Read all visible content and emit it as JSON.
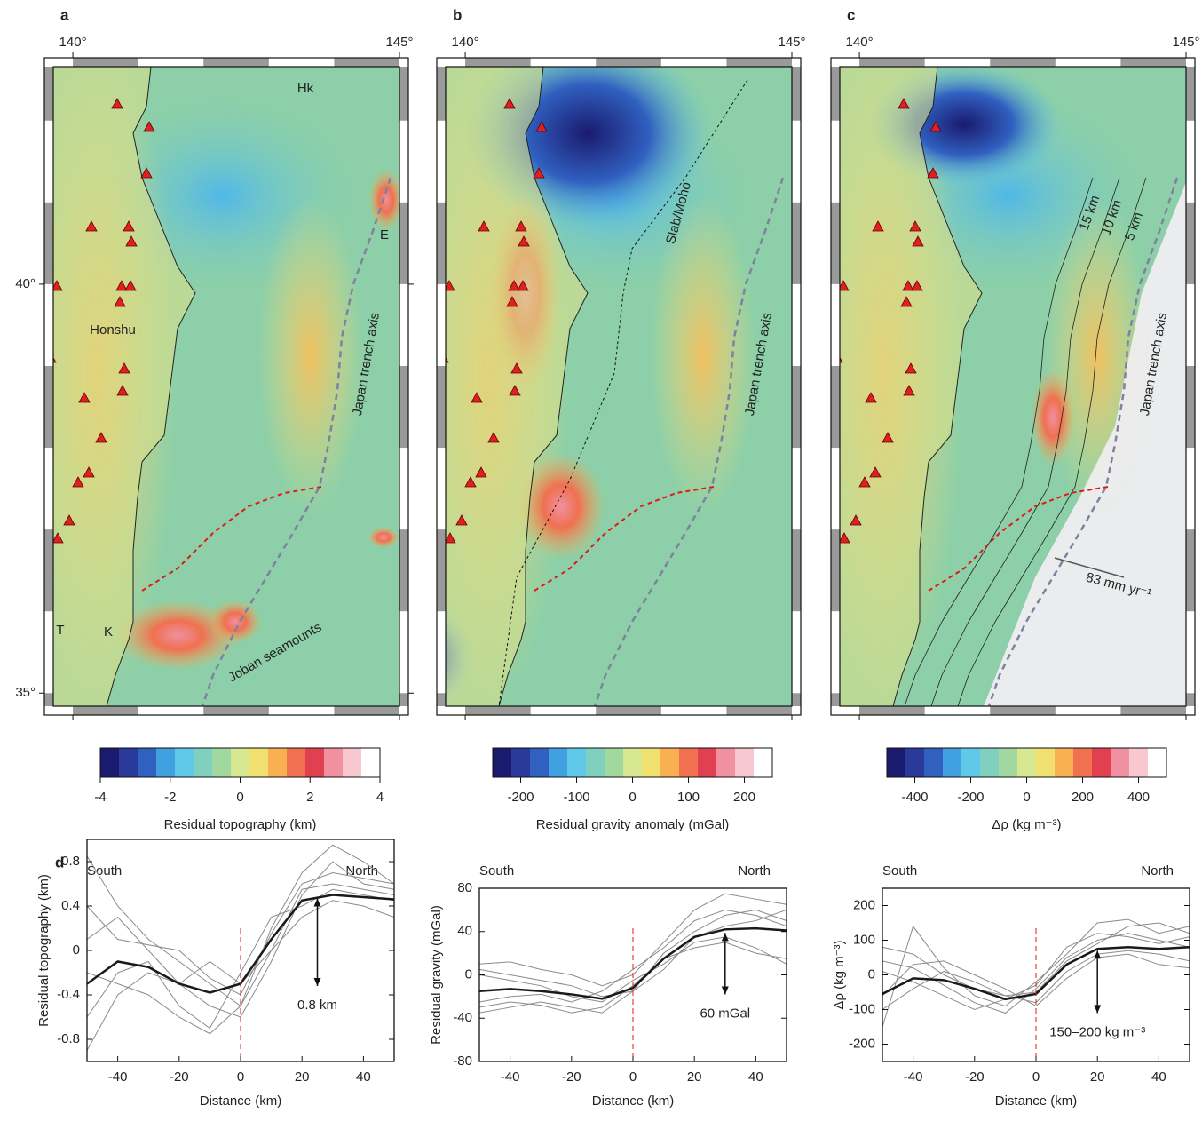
{
  "chart_data": [
    {
      "type": "map",
      "panel": "a",
      "xlim": [
        139.7,
        145
      ],
      "ylim": [
        34.84,
        42.66
      ],
      "xticks": [
        {
          "value": 140,
          "label": "140°"
        },
        {
          "value": 145,
          "label": "145°"
        }
      ],
      "yticks": [
        {
          "value": 40,
          "label": "40°"
        },
        {
          "value": 35,
          "label": "35°"
        }
      ],
      "annotations": [
        "Hk",
        "E",
        "Honshu",
        "Japan trench axis",
        "Joban seamounts",
        "T",
        "K"
      ],
      "colorbar": {
        "label": "Residual topography (km)",
        "lim": [
          -4,
          4
        ],
        "ticks": [
          -4,
          -2,
          0,
          2,
          4
        ]
      }
    },
    {
      "type": "map",
      "panel": "b",
      "xlim": [
        139.7,
        145
      ],
      "ylim": [
        34.84,
        42.66
      ],
      "xticks": [
        {
          "value": 140,
          "label": "140°"
        },
        {
          "value": 145,
          "label": "145°"
        }
      ],
      "annotations": [
        "Slab/Moho",
        "Japan trench axis"
      ],
      "colorbar": {
        "label": "Residual gravity anomaly (mGal)",
        "lim": [
          -250,
          250
        ],
        "ticks": [
          -200,
          -100,
          0,
          100,
          200
        ]
      }
    },
    {
      "type": "map",
      "panel": "c",
      "xlim": [
        139.7,
        145
      ],
      "ylim": [
        34.84,
        42.66
      ],
      "xticks": [
        {
          "value": 140,
          "label": "140°"
        },
        {
          "value": 145,
          "label": "145°"
        }
      ],
      "annotations": [
        "15 km",
        "10 km",
        "5 km",
        "Japan trench axis",
        "83 mm yr⁻¹"
      ],
      "colorbar": {
        "label": "Δρ (kg m⁻³)",
        "lim": [
          -500,
          500
        ],
        "ticks": [
          -400,
          -200,
          0,
          200,
          400
        ]
      }
    },
    {
      "type": "line",
      "panel": "d",
      "xlabel": "Distance (km)",
      "ylabel": "Residual topography (km)",
      "left_label": "South",
      "right_label": "North",
      "annotation": "0.8 km",
      "vline": 0,
      "xlim": [
        -50,
        50
      ],
      "ylim": [
        -1,
        1
      ],
      "xticks": [
        -40,
        -20,
        0,
        20,
        40
      ],
      "yticks": [
        -0.8,
        -0.4,
        0,
        0.4,
        0.8
      ],
      "x": [
        -50,
        -40,
        -30,
        -20,
        -10,
        0,
        10,
        20,
        30,
        40,
        50
      ],
      "series": [
        {
          "color": "#8a8a8a",
          "width": 1,
          "values": [
            0.85,
            0.4,
            0.1,
            -0.1,
            -0.3,
            -0.5,
            0.2,
            0.7,
            0.95,
            0.8,
            0.6
          ]
        },
        {
          "color": "#8a8a8a",
          "width": 1,
          "values": [
            0.1,
            0.3,
            0,
            -0.3,
            -0.5,
            -0.6,
            -0.1,
            0.5,
            0.8,
            0.6,
            0.55
          ]
        },
        {
          "color": "#8a8a8a",
          "width": 1,
          "values": [
            -0.6,
            -0.2,
            -0.1,
            -0.5,
            -0.7,
            -0.2,
            0.3,
            0.4,
            0.55,
            0.5,
            0.45
          ]
        },
        {
          "color": "#8a8a8a",
          "width": 1,
          "values": [
            -0.9,
            -0.4,
            -0.2,
            -0.3,
            -0.1,
            -0.3,
            0,
            0.3,
            0.45,
            0.4,
            0.3
          ]
        },
        {
          "color": "#8a8a8a",
          "width": 1,
          "values": [
            0.4,
            0.1,
            0.05,
            0,
            -0.25,
            -0.4,
            0.15,
            0.6,
            0.7,
            0.65,
            0.6
          ]
        },
        {
          "color": "#8a8a8a",
          "width": 1,
          "values": [
            -0.2,
            -0.3,
            -0.4,
            -0.6,
            -0.75,
            -0.5,
            0,
            0.55,
            0.6,
            0.55,
            0.5
          ]
        },
        {
          "color": "#1a1a1a",
          "width": 2.5,
          "values": [
            -0.3,
            -0.1,
            -0.15,
            -0.3,
            -0.38,
            -0.3,
            0.1,
            0.45,
            0.5,
            0.48,
            0.46
          ]
        }
      ]
    },
    {
      "type": "line",
      "xlabel": "Distance (km)",
      "ylabel": "Residual gravity (mGal)",
      "left_label": "South",
      "right_label": "North",
      "annotation": "60 mGal",
      "vline": 0,
      "xlim": [
        -50,
        50
      ],
      "ylim": [
        -80,
        80
      ],
      "xticks": [
        -40,
        -20,
        0,
        20,
        40
      ],
      "yticks": [
        -80,
        -40,
        0,
        40,
        80
      ],
      "x": [
        -50,
        -40,
        -30,
        -20,
        -10,
        0,
        10,
        20,
        30,
        40,
        50
      ],
      "series": [
        {
          "color": "#8a8a8a",
          "width": 1,
          "values": [
            10,
            12,
            5,
            0,
            -10,
            0,
            30,
            60,
            75,
            70,
            65
          ]
        },
        {
          "color": "#8a8a8a",
          "width": 1,
          "values": [
            -35,
            -30,
            -25,
            -30,
            -35,
            -15,
            20,
            40,
            55,
            60,
            50
          ]
        },
        {
          "color": "#8a8a8a",
          "width": 1,
          "values": [
            0,
            -5,
            -10,
            -20,
            -25,
            -5,
            10,
            30,
            35,
            25,
            10
          ]
        },
        {
          "color": "#8a8a8a",
          "width": 1,
          "values": [
            -25,
            -20,
            -18,
            -25,
            -15,
            5,
            25,
            50,
            60,
            55,
            45
          ]
        },
        {
          "color": "#8a8a8a",
          "width": 1,
          "values": [
            5,
            0,
            -5,
            -10,
            -20,
            -15,
            5,
            35,
            45,
            50,
            60
          ]
        },
        {
          "color": "#8a8a8a",
          "width": 1,
          "values": [
            -30,
            -25,
            -28,
            -35,
            -30,
            -10,
            15,
            25,
            30,
            20,
            15
          ]
        },
        {
          "color": "#1a1a1a",
          "width": 2.5,
          "values": [
            -15,
            -13,
            -15,
            -18,
            -22,
            -12,
            15,
            35,
            42,
            43,
            41
          ]
        }
      ]
    },
    {
      "type": "line",
      "xlabel": "Distance (km)",
      "ylabel": "Δρ (kg m⁻³)",
      "left_label": "South",
      "right_label": "North",
      "annotation": "150–200 kg m⁻³",
      "vline": 0,
      "xlim": [
        -50,
        50
      ],
      "ylim": [
        -250,
        250
      ],
      "xticks": [
        -40,
        -20,
        0,
        20,
        40
      ],
      "yticks": [
        -200,
        -100,
        0,
        100,
        200
      ],
      "x": [
        -50,
        -40,
        -30,
        -20,
        -10,
        0,
        10,
        20,
        30,
        40,
        50
      ],
      "series": [
        {
          "color": "#8a8a8a",
          "width": 1,
          "values": [
            -150,
            140,
            20,
            -60,
            -90,
            -20,
            60,
            150,
            160,
            120,
            140
          ]
        },
        {
          "color": "#8a8a8a",
          "width": 1,
          "values": [
            40,
            20,
            -30,
            -80,
            -110,
            -40,
            50,
            100,
            120,
            100,
            80
          ]
        },
        {
          "color": "#8a8a8a",
          "width": 1,
          "values": [
            -100,
            -40,
            10,
            -20,
            -60,
            -80,
            10,
            60,
            70,
            60,
            40
          ]
        },
        {
          "color": "#8a8a8a",
          "width": 1,
          "values": [
            10,
            -20,
            -60,
            -100,
            -70,
            -30,
            80,
            120,
            110,
            90,
            110
          ]
        },
        {
          "color": "#8a8a8a",
          "width": 1,
          "values": [
            -60,
            30,
            40,
            0,
            -40,
            -90,
            -10,
            50,
            60,
            30,
            20
          ]
        },
        {
          "color": "#8a8a8a",
          "width": 1,
          "values": [
            80,
            60,
            0,
            -40,
            -60,
            -50,
            40,
            90,
            140,
            150,
            120
          ]
        },
        {
          "color": "#1a1a1a",
          "width": 2.5,
          "values": [
            -55,
            -10,
            -15,
            -40,
            -70,
            -55,
            30,
            75,
            80,
            75,
            80
          ]
        }
      ]
    }
  ]
}
